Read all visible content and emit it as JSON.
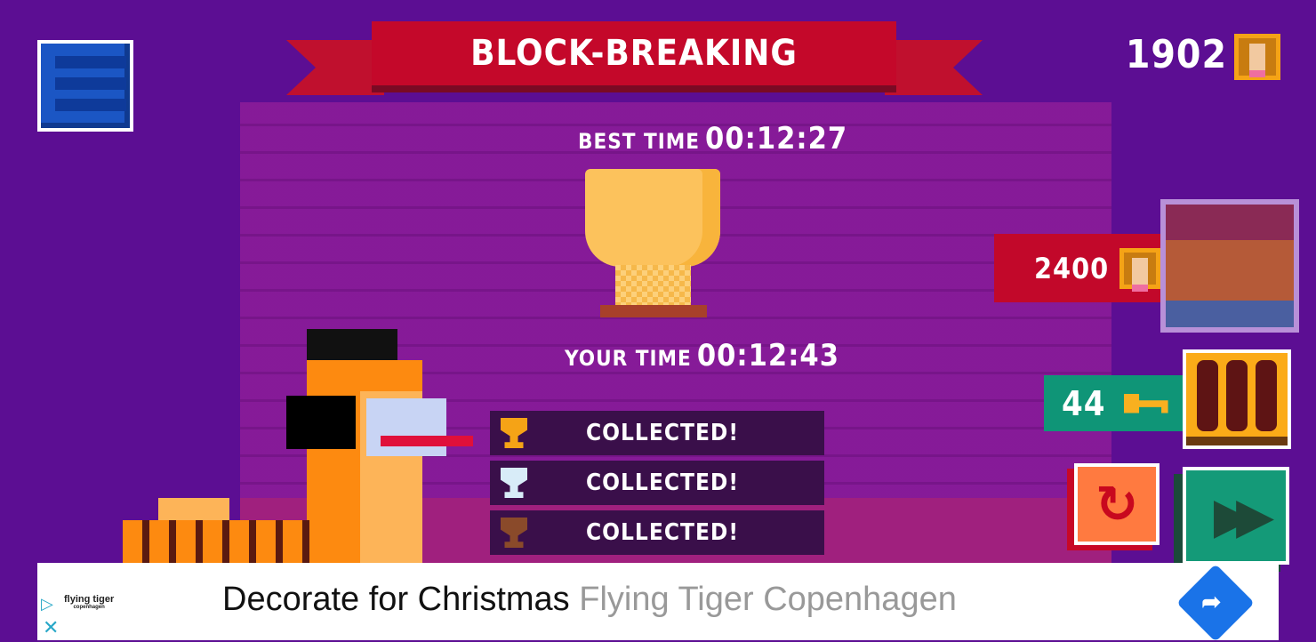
{
  "header": {
    "title": "Block-breaking",
    "coins": "1902"
  },
  "times": {
    "best_label": "Best Time",
    "best_value": "00:12:27",
    "your_label": "Your Time",
    "your_value": "00:12:43"
  },
  "rewards": [
    {
      "tier": "gold",
      "color": "#f5a316",
      "label": "Collected!"
    },
    {
      "tier": "silver",
      "color": "#d8ecf8",
      "label": "Collected!"
    },
    {
      "tier": "bronze",
      "color": "#8a4a2a",
      "label": "Collected!"
    }
  ],
  "shop": {
    "chest_price": "2400",
    "keys": "44"
  },
  "icons": {
    "menu": "list-icon",
    "currency": "llama-coin-icon",
    "key": "key-icon",
    "retry": "retry-icon",
    "next": "fast-forward-icon"
  },
  "ad": {
    "brand": "flying tiger",
    "brand_sub": "copenhagen",
    "headline": "Decorate for Christmas",
    "advertiser": "Flying Tiger Copenhagen"
  },
  "colors": {
    "background": "#5c0e93",
    "banner": "#c4082a",
    "keys_bar": "#0f9577",
    "retry": "#ff7a40",
    "next": "#149a78"
  }
}
